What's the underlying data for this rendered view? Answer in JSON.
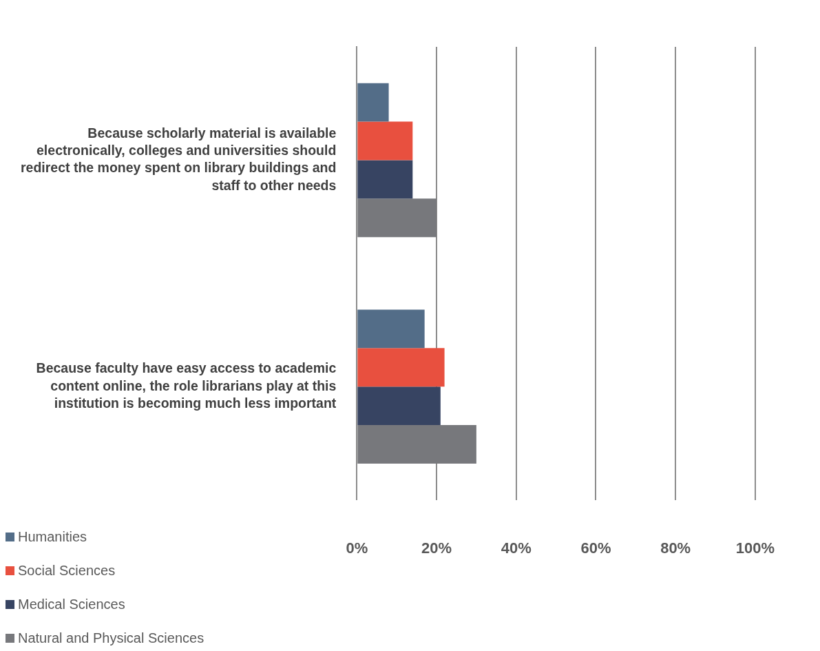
{
  "chart_data": {
    "type": "bar",
    "orientation": "horizontal",
    "categories": [
      "Because scholarly material is available electronically, colleges and universities should redirect the money spent on library buildings and staff to other needs",
      "Because faculty have easy access to academic content online, the role librarians play at this institution is becoming much less important"
    ],
    "series": [
      {
        "name": "Humanities",
        "color": "#536d88",
        "values": [
          8,
          17
        ]
      },
      {
        "name": "Social Sciences",
        "color": "#e8503f",
        "values": [
          14,
          22
        ]
      },
      {
        "name": "Medical Sciences",
        "color": "#374462",
        "values": [
          14,
          21
        ]
      },
      {
        "name": "Natural and Physical Sciences",
        "color": "#77787c",
        "values": [
          20,
          30
        ]
      }
    ],
    "xlim": [
      0,
      100
    ],
    "xticks": [
      {
        "value": 0,
        "label": "0%"
      },
      {
        "value": 20,
        "label": "20%"
      },
      {
        "value": 40,
        "label": "40%"
      },
      {
        "value": 60,
        "label": "60%"
      },
      {
        "value": 80,
        "label": "80%"
      },
      {
        "value": 100,
        "label": "100%"
      }
    ],
    "grid": "x",
    "legend": "bottom left"
  }
}
